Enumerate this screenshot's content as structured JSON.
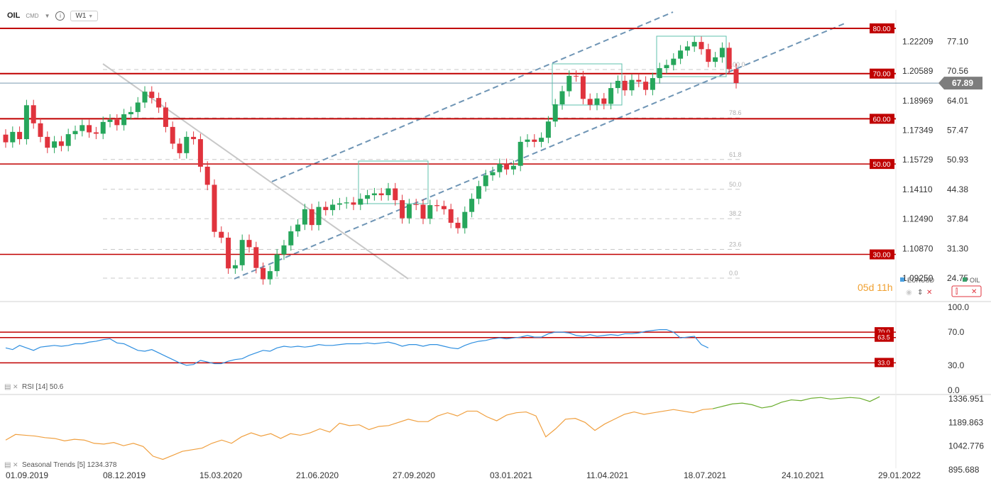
{
  "header": {
    "symbol": "OIL",
    "type": "CMD",
    "timeframe": "W1",
    "info_icon": "info-icon",
    "dropdown_icon": "chevron-down-icon"
  },
  "price_axis": {
    "oil_labels": [
      "77.10",
      "70.56",
      "64.01",
      "57.47",
      "50.93",
      "44.38",
      "37.84",
      "31.30",
      "24.75"
    ],
    "eurusd_labels": [
      "1.22209",
      "1.20589",
      "1.18969",
      "1.17349",
      "1.15729",
      "1.14110",
      "1.12490",
      "1.10870",
      "1.09250"
    ],
    "current_price": "67.89"
  },
  "levels": [
    {
      "label": "80.00",
      "value": 80
    },
    {
      "label": "70.00",
      "value": 70
    },
    {
      "label": "60.00",
      "value": 60
    },
    {
      "label": "50.00",
      "value": 50
    },
    {
      "label": "30.00",
      "value": 30
    }
  ],
  "fib_labels": [
    "100.0",
    "78.6",
    "61.8",
    "50.0",
    "38.2",
    "23.6",
    "0.0"
  ],
  "legend": {
    "eurusd": "EURUSD",
    "oil": "OIL"
  },
  "countdown": {
    "days": "05",
    "days_unit": "d",
    "hours": "11",
    "hours_unit": "h"
  },
  "rsi": {
    "label": "RSI",
    "period": "[14]",
    "value": "50.6",
    "axis": [
      "100.0",
      "70.0",
      "30.0",
      "0.0"
    ],
    "levels": [
      {
        "label": "70.0",
        "value": 70
      },
      {
        "label": "63.5",
        "value": 63.5
      },
      {
        "label": "33.0",
        "value": 33
      }
    ]
  },
  "seasonal": {
    "label": "Seasonal",
    "name": "Trends",
    "period": "[5]",
    "value": "1234.378",
    "axis": [
      "1336.951",
      "1189.863",
      "1042.776",
      "895.688"
    ]
  },
  "x_axis": [
    "01.09.2019",
    "08.12.2019",
    "15.03.2020",
    "21.06.2020",
    "27.09.2020",
    "03.01.2021",
    "11.04.2021",
    "18.07.2021",
    "24.10.2021",
    "29.01.2022"
  ],
  "colors": {
    "up": "#26a65b",
    "down": "#e0333d",
    "level": "#c00000",
    "channel": "#6f95b5",
    "rsi": "#2f8fe0",
    "seasonal_past": "#f0a040",
    "seasonal_future": "#6aad2e",
    "countdown": "#f0a030"
  },
  "chart_data": {
    "type": "candlestick",
    "title": "OIL",
    "timeframe": "W1",
    "ylim": [
      20,
      83
    ],
    "candles": [
      {
        "o": 56.5,
        "c": 54.8
      },
      {
        "o": 54.8,
        "c": 57.1
      },
      {
        "o": 57.1,
        "c": 55.5
      },
      {
        "o": 55.5,
        "c": 63.0
      },
      {
        "o": 63.0,
        "c": 59.0
      },
      {
        "o": 59.0,
        "c": 56.0
      },
      {
        "o": 56.0,
        "c": 53.6
      },
      {
        "o": 53.6,
        "c": 55.0
      },
      {
        "o": 55.0,
        "c": 54.0
      },
      {
        "o": 54.0,
        "c": 56.6
      },
      {
        "o": 56.6,
        "c": 57.3
      },
      {
        "o": 57.3,
        "c": 58.6
      },
      {
        "o": 58.6,
        "c": 57.0
      },
      {
        "o": 57.0,
        "c": 56.7
      },
      {
        "o": 56.7,
        "c": 59.3
      },
      {
        "o": 59.3,
        "c": 59.8
      },
      {
        "o": 59.8,
        "c": 58.6
      },
      {
        "o": 58.6,
        "c": 61.0
      },
      {
        "o": 61.0,
        "c": 61.5
      },
      {
        "o": 61.5,
        "c": 63.6
      },
      {
        "o": 63.6,
        "c": 66.0
      },
      {
        "o": 66.0,
        "c": 64.6
      },
      {
        "o": 64.6,
        "c": 62.5
      },
      {
        "o": 62.5,
        "c": 58.2
      },
      {
        "o": 58.2,
        "c": 54.5
      },
      {
        "o": 54.5,
        "c": 52.4
      },
      {
        "o": 52.4,
        "c": 56.0
      },
      {
        "o": 56.0,
        "c": 55.5
      },
      {
        "o": 55.5,
        "c": 49.4
      },
      {
        "o": 49.4,
        "c": 45.4
      },
      {
        "o": 45.4,
        "c": 35.0
      },
      {
        "o": 35.0,
        "c": 33.7
      },
      {
        "o": 33.7,
        "c": 26.9
      },
      {
        "o": 26.9,
        "c": 27.6
      },
      {
        "o": 27.6,
        "c": 33.2
      },
      {
        "o": 33.2,
        "c": 31.6
      },
      {
        "o": 31.6,
        "c": 27.0
      },
      {
        "o": 27.0,
        "c": 24.5
      },
      {
        "o": 24.5,
        "c": 26.3
      },
      {
        "o": 26.3,
        "c": 30.0
      },
      {
        "o": 30.0,
        "c": 32.0
      },
      {
        "o": 32.0,
        "c": 35.1
      },
      {
        "o": 35.1,
        "c": 36.6
      },
      {
        "o": 36.6,
        "c": 40.0
      },
      {
        "o": 40.0,
        "c": 36.5
      },
      {
        "o": 36.5,
        "c": 40.5
      },
      {
        "o": 40.5,
        "c": 39.8
      },
      {
        "o": 39.8,
        "c": 41.0
      },
      {
        "o": 41.0,
        "c": 41.3
      },
      {
        "o": 41.3,
        "c": 41.5
      },
      {
        "o": 41.5,
        "c": 41.0
      },
      {
        "o": 41.0,
        "c": 42.3
      },
      {
        "o": 42.3,
        "c": 43.1
      },
      {
        "o": 43.1,
        "c": 43.5
      },
      {
        "o": 43.5,
        "c": 43.1
      },
      {
        "o": 43.1,
        "c": 44.6
      },
      {
        "o": 44.6,
        "c": 42.0
      },
      {
        "o": 42.0,
        "c": 38.0
      },
      {
        "o": 38.0,
        "c": 41.1
      },
      {
        "o": 41.1,
        "c": 41.0
      },
      {
        "o": 41.0,
        "c": 37.9
      },
      {
        "o": 37.9,
        "c": 40.9
      },
      {
        "o": 40.9,
        "c": 40.7
      },
      {
        "o": 40.7,
        "c": 40.0
      },
      {
        "o": 40.0,
        "c": 37.0
      },
      {
        "o": 37.0,
        "c": 35.8
      },
      {
        "o": 35.8,
        "c": 39.4
      },
      {
        "o": 39.4,
        "c": 42.3
      },
      {
        "o": 42.3,
        "c": 45.1
      },
      {
        "o": 45.1,
        "c": 47.5
      },
      {
        "o": 47.5,
        "c": 48.2
      },
      {
        "o": 48.2,
        "c": 50.0
      },
      {
        "o": 50.0,
        "c": 48.8
      },
      {
        "o": 48.8,
        "c": 49.6
      },
      {
        "o": 49.6,
        "c": 54.9
      },
      {
        "o": 54.9,
        "c": 55.4
      },
      {
        "o": 55.4,
        "c": 54.9
      },
      {
        "o": 54.9,
        "c": 55.8
      },
      {
        "o": 55.8,
        "c": 59.4
      },
      {
        "o": 59.4,
        "c": 63.2
      },
      {
        "o": 63.2,
        "c": 66.1
      },
      {
        "o": 66.1,
        "c": 69.5
      },
      {
        "o": 69.5,
        "c": 69.4
      },
      {
        "o": 69.4,
        "c": 64.4
      },
      {
        "o": 64.4,
        "c": 63.1
      },
      {
        "o": 63.1,
        "c": 64.5
      },
      {
        "o": 64.5,
        "c": 63.3
      },
      {
        "o": 63.3,
        "c": 66.8
      },
      {
        "o": 66.8,
        "c": 68.4
      },
      {
        "o": 68.4,
        "c": 66.3
      },
      {
        "o": 66.3,
        "c": 68.6
      },
      {
        "o": 68.6,
        "c": 68.2
      },
      {
        "o": 68.2,
        "c": 66.4
      },
      {
        "o": 66.4,
        "c": 69.0
      },
      {
        "o": 69.0,
        "c": 71.2
      },
      {
        "o": 71.2,
        "c": 71.9
      },
      {
        "o": 71.9,
        "c": 73.3
      },
      {
        "o": 73.3,
        "c": 75.1
      },
      {
        "o": 75.1,
        "c": 76.0
      },
      {
        "o": 76.0,
        "c": 77.0
      },
      {
        "o": 77.0,
        "c": 75.4
      },
      {
        "o": 75.4,
        "c": 72.6
      },
      {
        "o": 72.6,
        "c": 73.6
      },
      {
        "o": 73.6,
        "c": 75.7
      },
      {
        "o": 75.7,
        "c": 71.0
      },
      {
        "o": 71.0,
        "c": 67.9
      }
    ],
    "rsi_values": [
      51,
      49,
      54,
      51,
      48,
      52,
      53,
      54,
      53,
      54,
      56,
      56,
      58,
      59,
      61,
      62,
      57,
      56,
      52,
      48,
      47,
      49,
      45,
      41,
      37,
      33,
      30,
      31,
      36,
      34,
      32,
      32,
      35,
      37,
      38,
      42,
      45,
      48,
      47,
      51,
      53,
      52,
      53,
      52,
      53,
      55,
      54,
      54,
      55,
      56,
      56,
      56,
      57,
      56,
      57,
      58,
      56,
      53,
      55,
      55,
      53,
      55,
      55,
      53,
      51,
      50,
      54,
      57,
      59,
      60,
      62,
      63,
      62,
      63,
      64,
      66,
      64,
      64,
      68,
      70,
      70,
      69,
      66,
      65,
      67,
      65,
      66,
      67,
      66,
      68,
      68,
      69,
      71,
      72,
      73,
      73,
      70,
      63,
      64,
      65,
      55,
      51
    ],
    "seasonal_values": [
      1080,
      1115,
      1110,
      1105,
      1095,
      1090,
      1075,
      1085,
      1080,
      1060,
      1055,
      1065,
      1045,
      1060,
      1040,
      980,
      960,
      985,
      1010,
      1020,
      1030,
      1060,
      1080,
      1060,
      1100,
      1125,
      1105,
      1120,
      1090,
      1120,
      1110,
      1125,
      1150,
      1130,
      1185,
      1170,
      1175,
      1145,
      1165,
      1170,
      1190,
      1210,
      1195,
      1195,
      1230,
      1250,
      1230,
      1260,
      1260,
      1225,
      1200,
      1235,
      1250,
      1255,
      1230,
      1100,
      1150,
      1210,
      1215,
      1190,
      1140,
      1180,
      1210,
      1240,
      1255,
      1240,
      1250,
      1260,
      1270,
      1260,
      1250,
      1270,
      1275,
      1290,
      1305,
      1310,
      1300,
      1280,
      1290,
      1315,
      1330,
      1325,
      1340,
      1345,
      1335,
      1340,
      1345,
      1340,
      1320,
      1350
    ]
  }
}
